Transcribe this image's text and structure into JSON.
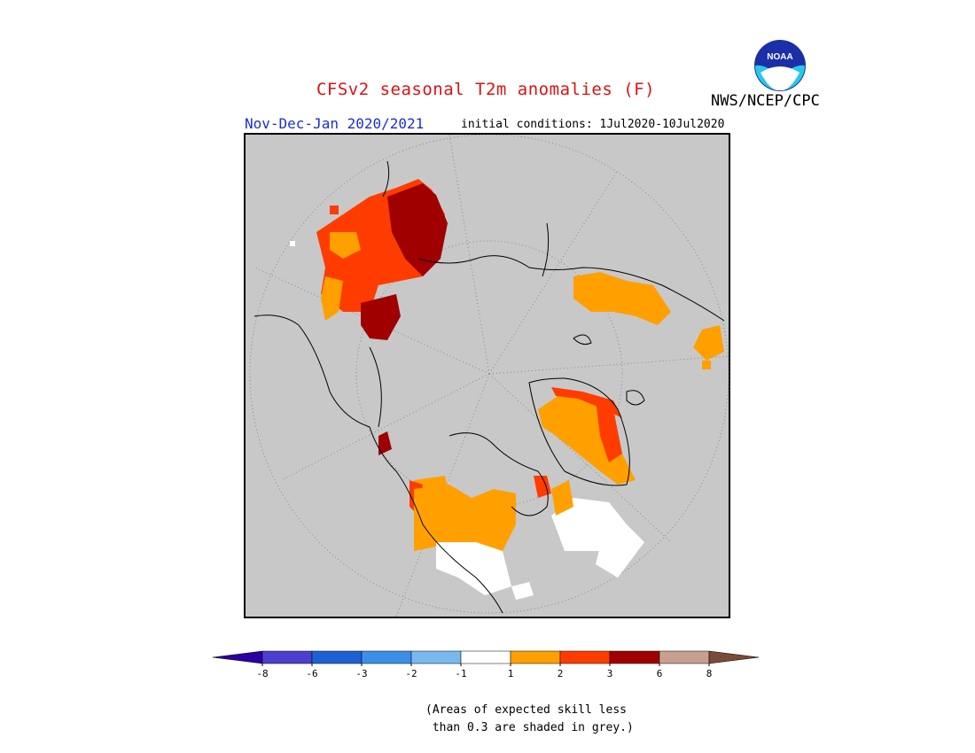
{
  "header": {
    "title": "CFSv2 seasonal T2m anomalies (F)",
    "organization": "NWS/NCEP/CPC",
    "period": "Nov-Dec-Jan 2020/2021",
    "initial_conditions": "initial conditions: 1Jul2020-10Jul2020"
  },
  "logo": {
    "text": "NOAA",
    "icon": "noaa-logo-icon"
  },
  "map": {
    "projection": "north-polar-stereographic",
    "background_color": "#c8c8c8",
    "grey_meaning": "skill < 0.3"
  },
  "legend": {
    "ticks": [
      "-8",
      "-6",
      "-3",
      "-2",
      "-1",
      "1",
      "2",
      "3",
      "6",
      "8"
    ],
    "colors": [
      "#2a00a0",
      "#4b3fd0",
      "#1c62d4",
      "#3b8fe8",
      "#7ab8f0",
      "#ffffff",
      "#ffa000",
      "#ff3c00",
      "#a00000",
      "#c8a090",
      "#7a4a3a"
    ]
  },
  "footnote": {
    "line1": "(Areas of expected skill less",
    "line2": " than 0.3 are shaded in grey.)"
  }
}
